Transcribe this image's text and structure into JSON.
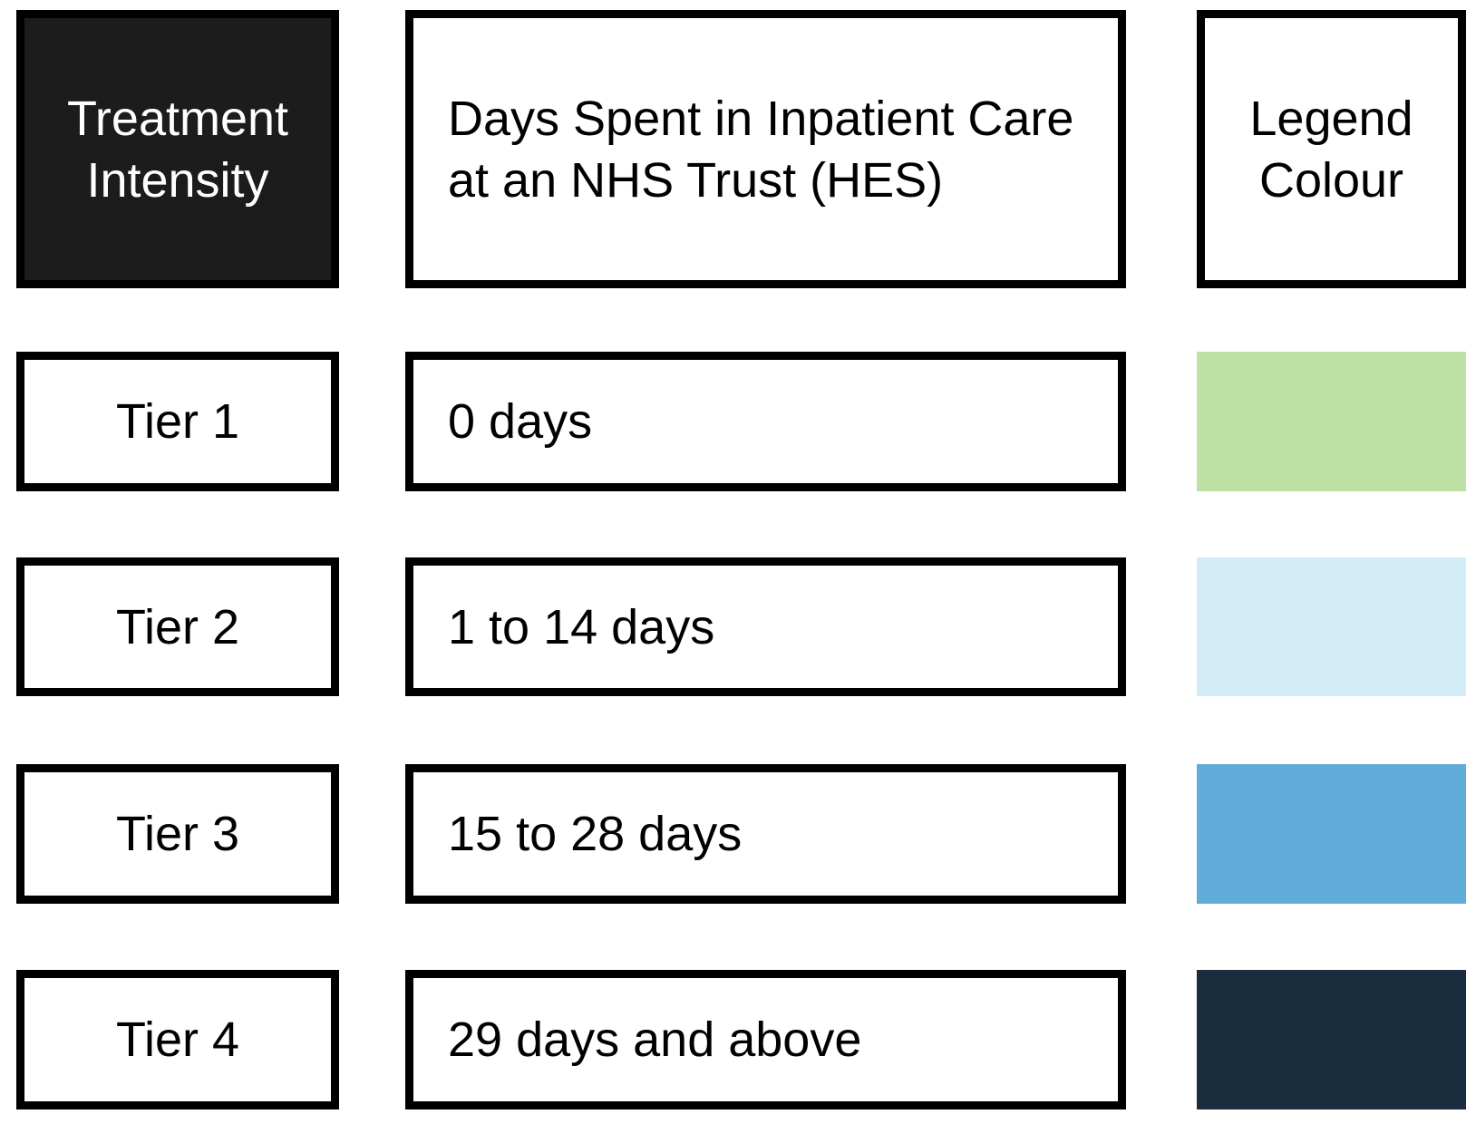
{
  "header": {
    "intensity": {
      "line1": "Treatment",
      "line2": "Intensity"
    },
    "days": {
      "line1": "Days Spent in Inpatient Care",
      "line2": "at an NHS Trust (HES)"
    },
    "legend": {
      "line1": "Legend",
      "line2": "Colour"
    }
  },
  "rows": [
    {
      "tier": "Tier 1",
      "days": "0 days",
      "colour": "#BDE1A4",
      "colour_name": "light-green"
    },
    {
      "tier": "Tier 2",
      "days": "1 to 14 days",
      "colour": "#D3EDF8",
      "colour_name": "pale-blue"
    },
    {
      "tier": "Tier 3",
      "days": "15 to 28 days",
      "colour": "#60ADD9",
      "colour_name": "medium-blue"
    },
    {
      "tier": "Tier 4",
      "days": "29 days and above",
      "colour": "#1A2D3F",
      "colour_name": "dark-navy"
    }
  ],
  "colors": {
    "header_fill": "#1C1C1C",
    "border": "#000000",
    "header_text": "#FFFFFF",
    "body_text": "#000000"
  }
}
